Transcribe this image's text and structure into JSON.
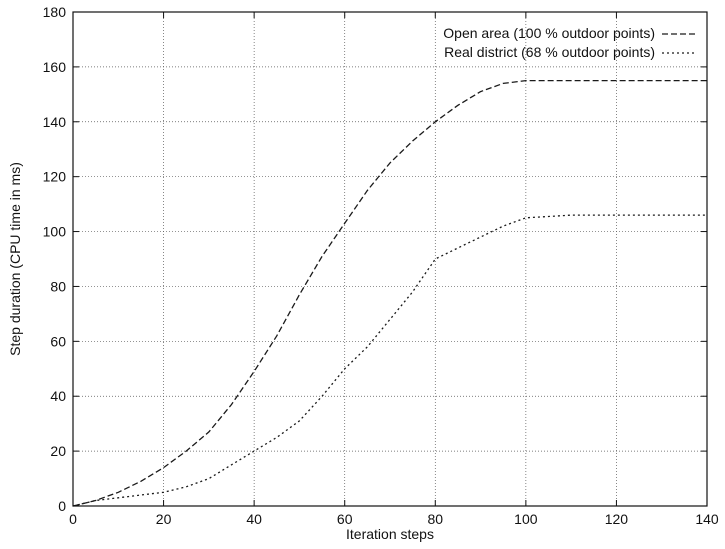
{
  "chart_data": {
    "type": "line",
    "title": "",
    "xlabel": "Iteration steps",
    "ylabel": "Step duration (CPU time in ms)",
    "xlim": [
      0,
      140
    ],
    "ylim": [
      0,
      180
    ],
    "xticks": [
      0,
      20,
      40,
      60,
      80,
      100,
      120,
      140
    ],
    "yticks": [
      0,
      20,
      40,
      60,
      80,
      100,
      120,
      140,
      160,
      180
    ],
    "grid": true,
    "legend_position": "top-right",
    "series": [
      {
        "name": "Open area (100 % outdoor points)",
        "style": "dashed",
        "color": "#1a1a1a",
        "x": [
          0,
          5,
          10,
          15,
          20,
          25,
          30,
          35,
          40,
          45,
          50,
          55,
          60,
          65,
          70,
          75,
          80,
          85,
          90,
          95,
          100,
          105,
          110,
          120,
          130,
          140
        ],
        "y": [
          0,
          2,
          5,
          9,
          14,
          20,
          27,
          37,
          49,
          62,
          77,
          91,
          103,
          115,
          125,
          133,
          140,
          146,
          151,
          154,
          155,
          155,
          155,
          155,
          155,
          155
        ]
      },
      {
        "name": "Real district (68 % outdoor points)",
        "style": "dotted",
        "color": "#1a1a1a",
        "x": [
          0,
          5,
          10,
          15,
          20,
          25,
          30,
          35,
          40,
          45,
          50,
          55,
          60,
          65,
          70,
          75,
          80,
          85,
          90,
          95,
          100,
          105,
          110,
          115,
          120,
          130,
          140
        ],
        "y": [
          0,
          2,
          3,
          4,
          5,
          7,
          10,
          15,
          20,
          25,
          31,
          40,
          50,
          58,
          68,
          78,
          90,
          94,
          98,
          102,
          105,
          105.5,
          106,
          106,
          106,
          106,
          106
        ]
      }
    ]
  }
}
